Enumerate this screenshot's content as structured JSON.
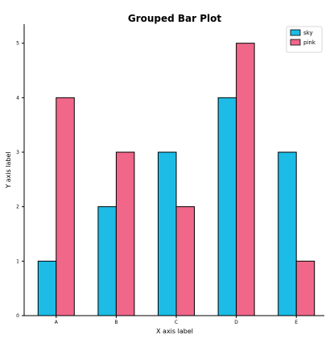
{
  "chart_data": {
    "type": "bar",
    "title": "Grouped Bar Plot",
    "xlabel": "X axis label",
    "ylabel": "Y axis label",
    "categories": [
      "A",
      "B",
      "C",
      "D",
      "E"
    ],
    "series": [
      {
        "name": "sky",
        "values": [
          1,
          2,
          3,
          4,
          3
        ],
        "color": "#1cbce6"
      },
      {
        "name": "pink",
        "values": [
          4,
          3,
          2,
          5,
          1
        ],
        "color": "#f0678a"
      }
    ],
    "ylim": [
      0,
      5.35
    ],
    "yticks": [
      "0",
      "1",
      "2",
      "3",
      "4",
      "5"
    ],
    "grid": false,
    "legend_position": "top-right"
  }
}
